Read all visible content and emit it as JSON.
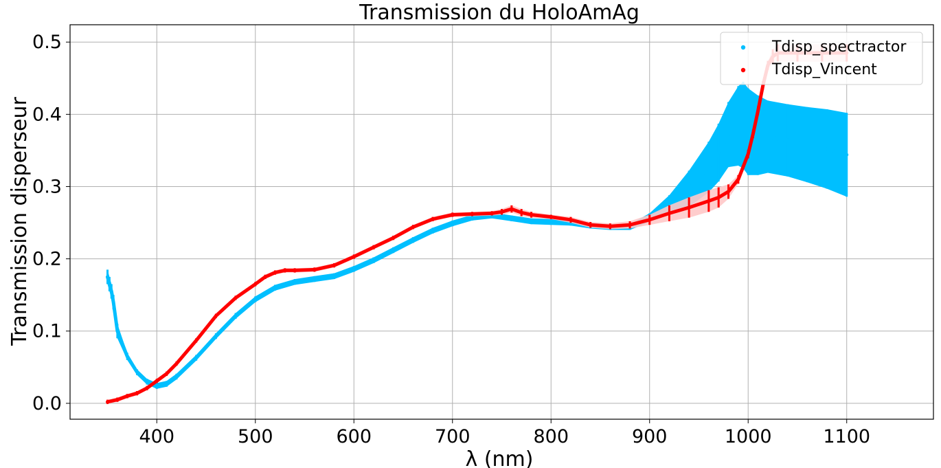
{
  "chart_data": {
    "type": "scatter",
    "title": "Transmission du HoloAmAg",
    "xlabel": "λ (nm)",
    "ylabel": "Transmission disperseur",
    "xlim": [
      312,
      1188
    ],
    "ylim": [
      -0.022,
      0.524
    ],
    "xticks": [
      400,
      500,
      600,
      700,
      800,
      900,
      1000,
      1100
    ],
    "yticks": [
      0.0,
      0.1,
      0.2,
      0.3,
      0.4,
      0.5
    ],
    "ytick_labels": [
      "0.0",
      "0.1",
      "0.2",
      "0.3",
      "0.4",
      "0.5"
    ],
    "grid": true,
    "legend_position": "top-right",
    "series": [
      {
        "name": "Tdisp_spectractor",
        "color": "#00bfff",
        "light_color": "#00bfff",
        "x": [
          350,
          352,
          354,
          356,
          360,
          370,
          380,
          390,
          400,
          410,
          420,
          440,
          460,
          480,
          500,
          520,
          540,
          560,
          580,
          600,
          620,
          640,
          660,
          680,
          700,
          720,
          740,
          760,
          780,
          800,
          820,
          840,
          860,
          880,
          900,
          920,
          940,
          960,
          970,
          980,
          990,
          995,
          1000,
          1010,
          1020,
          1040,
          1060,
          1080,
          1100
        ],
        "y": [
          0.175,
          0.165,
          0.155,
          0.14,
          0.1,
          0.065,
          0.043,
          0.03,
          0.024,
          0.027,
          0.037,
          0.063,
          0.093,
          0.121,
          0.144,
          0.16,
          0.168,
          0.172,
          0.176,
          0.186,
          0.198,
          0.212,
          0.226,
          0.239,
          0.249,
          0.257,
          0.26,
          0.256,
          0.252,
          0.251,
          0.25,
          0.246,
          0.244,
          0.244,
          0.257,
          0.276,
          0.297,
          0.327,
          0.347,
          0.372,
          0.384,
          0.385,
          0.376,
          0.371,
          0.369,
          0.364,
          0.358,
          0.352,
          0.344
        ],
        "spread": [
          0.01,
          0.01,
          0.01,
          0.01,
          0.01,
          0.005,
          0.004,
          0.004,
          0.004,
          0.004,
          0.004,
          0.004,
          0.004,
          0.004,
          0.004,
          0.004,
          0.004,
          0.004,
          0.004,
          0.004,
          0.004,
          0.004,
          0.004,
          0.004,
          0.004,
          0.004,
          0.004,
          0.004,
          0.004,
          0.004,
          0.004,
          0.004,
          0.004,
          0.004,
          0.006,
          0.012,
          0.025,
          0.035,
          0.04,
          0.045,
          0.055,
          0.06,
          0.06,
          0.055,
          0.05,
          0.05,
          0.052,
          0.055,
          0.058
        ]
      },
      {
        "name": "Tdisp_Vincent",
        "color": "#ff0000",
        "light_color": "#ffc8c8",
        "x": [
          350,
          360,
          370,
          380,
          390,
          400,
          410,
          420,
          440,
          460,
          480,
          500,
          510,
          520,
          530,
          540,
          560,
          580,
          600,
          620,
          640,
          660,
          680,
          700,
          720,
          740,
          750,
          760,
          770,
          780,
          800,
          820,
          840,
          860,
          880,
          900,
          920,
          940,
          960,
          970,
          980,
          990,
          1000,
          1005,
          1010,
          1015,
          1020,
          1025,
          1030,
          1050,
          1075,
          1100
        ],
        "y": [
          0.002,
          0.005,
          0.01,
          0.014,
          0.021,
          0.031,
          0.041,
          0.055,
          0.087,
          0.121,
          0.146,
          0.165,
          0.175,
          0.181,
          0.184,
          0.184,
          0.185,
          0.191,
          0.203,
          0.216,
          0.229,
          0.244,
          0.255,
          0.261,
          0.262,
          0.263,
          0.265,
          0.269,
          0.264,
          0.261,
          0.258,
          0.254,
          0.247,
          0.245,
          0.247,
          0.254,
          0.263,
          0.271,
          0.28,
          0.285,
          0.293,
          0.31,
          0.345,
          0.373,
          0.405,
          0.44,
          0.468,
          0.48,
          0.485,
          0.485,
          0.485,
          0.485
        ],
        "spread": [
          0.003,
          0.003,
          0.003,
          0.003,
          0.003,
          0.003,
          0.003,
          0.003,
          0.003,
          0.003,
          0.003,
          0.003,
          0.003,
          0.003,
          0.003,
          0.003,
          0.003,
          0.003,
          0.003,
          0.003,
          0.003,
          0.003,
          0.003,
          0.003,
          0.003,
          0.003,
          0.004,
          0.005,
          0.005,
          0.004,
          0.003,
          0.004,
          0.004,
          0.004,
          0.005,
          0.007,
          0.011,
          0.014,
          0.015,
          0.014,
          0.01,
          0.006,
          0.006,
          0.006,
          0.006,
          0.006,
          0.006,
          0.01,
          0.012,
          0.012,
          0.012,
          0.012
        ]
      }
    ]
  }
}
